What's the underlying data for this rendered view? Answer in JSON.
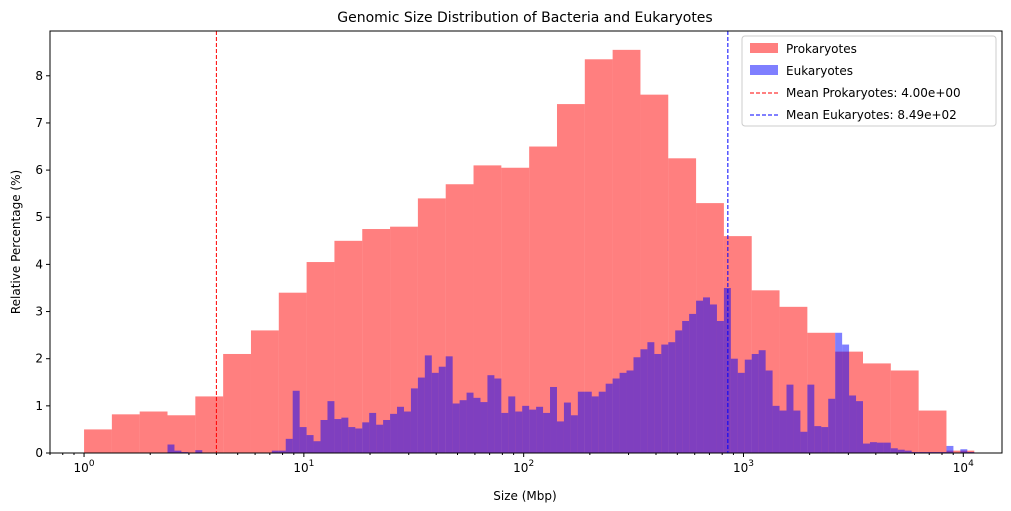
{
  "chart_data": {
    "type": "bar",
    "title": "Genomic Size Distribution of Bacteria and Eukaryotes",
    "xlabel": "Size (Mbp)",
    "ylabel": "Relative Percentage (%)",
    "xscale": "log",
    "xlim": [
      0.7,
      15000
    ],
    "ylim": [
      0,
      8.95
    ],
    "yticks": [
      0,
      1,
      2,
      3,
      4,
      5,
      6,
      7,
      8
    ],
    "xticks": [
      {
        "value": 1,
        "base": "10",
        "exp": "0"
      },
      {
        "value": 10,
        "base": "10",
        "exp": "1"
      },
      {
        "value": 100,
        "base": "10",
        "exp": "2"
      },
      {
        "value": 1000,
        "base": "10",
        "exp": "3"
      },
      {
        "value": 10000,
        "base": "10",
        "exp": "4"
      }
    ],
    "grid": false,
    "legend_position": "top-right",
    "bin_range": [
      1,
      11220
    ],
    "series": [
      {
        "name": "Prokaryotes",
        "color": "#ff0000",
        "alpha": 0.5,
        "values": [
          0.5,
          0.82,
          0.88,
          0.8,
          1.2,
          2.1,
          2.6,
          3.4,
          4.05,
          4.5,
          4.75,
          4.8,
          5.4,
          5.7,
          6.1,
          6.05,
          6.5,
          7.4,
          8.35,
          8.55,
          7.6,
          6.25,
          5.3,
          4.6,
          3.45,
          3.1,
          2.55,
          2.15,
          1.9,
          1.75,
          0.9,
          0.05
        ]
      },
      {
        "name": "Eukaryotes",
        "color": "#0000ff",
        "alpha": 0.5,
        "values": [
          0,
          0,
          0,
          0,
          0,
          0,
          0,
          0,
          0,
          0,
          0,
          0,
          0.18,
          0.05,
          0.02,
          0,
          0.06,
          0,
          0,
          0,
          0,
          0,
          0,
          0,
          0,
          0,
          0,
          0.05,
          0.05,
          0.3,
          1.32,
          0.55,
          0.38,
          0.25,
          0.7,
          1.1,
          0.72,
          0.75,
          0.55,
          0.52,
          0.65,
          0.85,
          0.6,
          0.7,
          0.83,
          0.98,
          0.88,
          1.37,
          1.6,
          2.07,
          1.7,
          1.83,
          2.05,
          1.05,
          1.12,
          1.28,
          1.17,
          1.08,
          1.65,
          1.58,
          0.85,
          1.2,
          0.88,
          1.0,
          0.92,
          0.98,
          0.85,
          1.4,
          0.67,
          1.07,
          0.8,
          1.3,
          1.3,
          1.2,
          1.3,
          1.47,
          1.58,
          1.7,
          1.75,
          2.03,
          2.2,
          2.35,
          2.1,
          2.3,
          2.35,
          2.6,
          2.8,
          2.95,
          3.23,
          3.3,
          3.15,
          2.8,
          3.5,
          2.0,
          1.7,
          1.98,
          2.1,
          2.18,
          1.75,
          1.0,
          0.9,
          1.45,
          0.9,
          0.45,
          1.45,
          0.57,
          0.55,
          1.15,
          2.55,
          2.3,
          1.22,
          1.1,
          0.2,
          0.23,
          0.22,
          0.22,
          0.1,
          0.07,
          0.05,
          0.02,
          0.02,
          0.02,
          0.02,
          0.02,
          0.15,
          0,
          0.08,
          0.02
        ]
      }
    ],
    "mean_lines": [
      {
        "label": "Mean Prokaryotes: 4.00e+00",
        "value": 4.0,
        "color": "#ff0000"
      },
      {
        "label": "Mean Eukaryotes: 8.49e+02",
        "value": 849,
        "color": "#0000ff"
      }
    ]
  }
}
